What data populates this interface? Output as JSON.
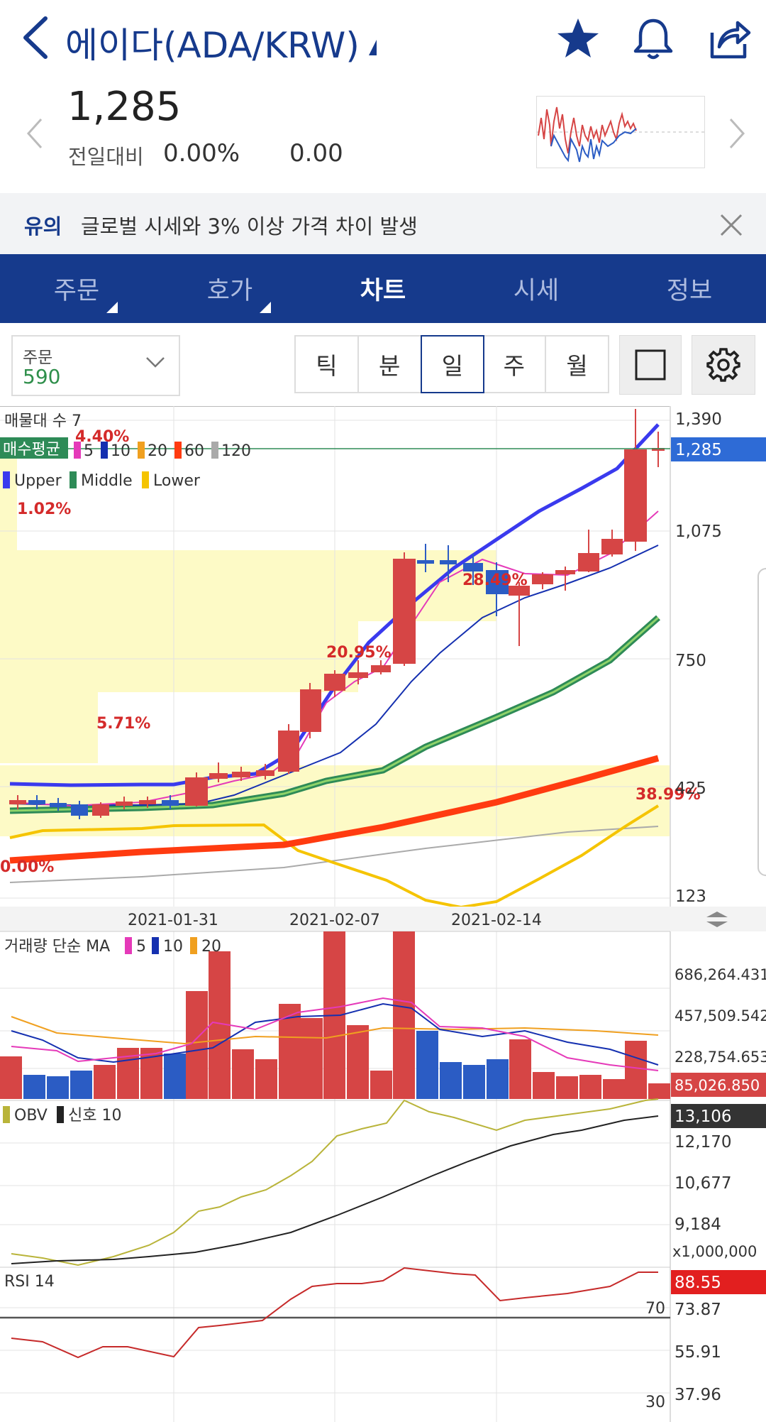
{
  "header": {
    "title": "에이다(ADA/KRW)",
    "icons": [
      "back-chevron-icon",
      "caret-icon",
      "star-icon",
      "bell-icon",
      "share-icon"
    ],
    "accent_color": "#163a8c"
  },
  "price": {
    "current": "1,285",
    "change_label": "전일대비",
    "change_pct": "0.00%",
    "change_value": "0.00"
  },
  "notice": {
    "tag": "유의",
    "text": "글로벌 시세와 3% 이상 가격 차이 발생"
  },
  "tabs": [
    {
      "label": "주문",
      "has_sub": true
    },
    {
      "label": "호가",
      "has_sub": true
    },
    {
      "label": "차트",
      "active": true
    },
    {
      "label": "시세"
    },
    {
      "label": "정보"
    }
  ],
  "toolbar": {
    "order_label": "주문",
    "order_value": "590",
    "periods": [
      {
        "label": "틱"
      },
      {
        "label": "분"
      },
      {
        "label": "일",
        "active": true
      },
      {
        "label": "주"
      },
      {
        "label": "월"
      }
    ]
  },
  "chart": {
    "main": {
      "indicator_line1": "매물대 수 7",
      "indicator_line2_prefix": "매수평균",
      "ma_legend": [
        {
          "label": "5",
          "color": "#e53ab9"
        },
        {
          "label": "10",
          "color": "#1530b0"
        },
        {
          "label": "20",
          "color": "#f0a020"
        },
        {
          "label": "60",
          "color": "#ff3b10"
        },
        {
          "label": "120",
          "color": "#aaaaaa"
        }
      ],
      "bb_legend": [
        {
          "label": "Upper",
          "color": "#3a3aee"
        },
        {
          "label": "Middle",
          "color": "#2e8b57"
        },
        {
          "label": "Lower",
          "color": "#f5c400"
        }
      ],
      "volume_profile_pcts": [
        "4.40%",
        "1.02%",
        "5.71%",
        "20.95%",
        "28.49%",
        "38.99%",
        "0.00%"
      ],
      "price_axis": [
        "1,390",
        "1,075",
        "750",
        "425",
        "123"
      ],
      "current_price_tag": "1,285",
      "date_axis": [
        "2021-01-31",
        "2021-02-07",
        "2021-02-14"
      ]
    },
    "volume": {
      "title": "거래량 단순 MA",
      "ma_legend": [
        {
          "label": "5",
          "color": "#e53ab9"
        },
        {
          "label": "10",
          "color": "#1530b0"
        },
        {
          "label": "20",
          "color": "#f0a020"
        }
      ],
      "axis": [
        "686,264.431",
        "457,509.542",
        "228,754.653"
      ],
      "current_tag": "85,026.850"
    },
    "obv": {
      "title_obv": "OBV",
      "title_signal": "신호 10",
      "axis": [
        "12,170",
        "10,677",
        "9,184"
      ],
      "multiplier": "x1,000,000",
      "current_tag": "13,106"
    },
    "rsi": {
      "title": "RSI 14",
      "axis": [
        "73.87",
        "55.91",
        "37.96"
      ],
      "level_high": "70",
      "level_low": "30",
      "current_tag": "88.55"
    }
  }
}
